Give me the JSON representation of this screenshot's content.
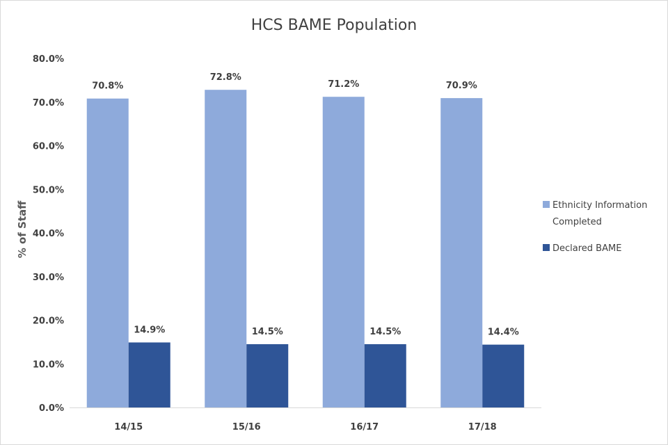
{
  "chart_data": {
    "type": "bar",
    "title": "HCS BAME Population",
    "xlabel": "",
    "ylabel": "% of Staff",
    "categories": [
      "14/15",
      "15/16",
      "16/17",
      "17/18"
    ],
    "series": [
      {
        "name": "Ethnicity Information Completed",
        "color": "#8eaadb",
        "values": [
          70.8,
          72.8,
          71.2,
          70.9
        ],
        "labels": [
          "70.8%",
          "72.8%",
          "71.2%",
          "70.9%"
        ]
      },
      {
        "name": "Declared BAME",
        "color": "#2f5597",
        "values": [
          14.9,
          14.5,
          14.5,
          14.4
        ],
        "labels": [
          "14.9%",
          "14.5%",
          "14.5%",
          "14.4%"
        ]
      }
    ],
    "ylim": [
      0,
      80
    ],
    "yticks": [
      0,
      10,
      20,
      30,
      40,
      50,
      60,
      70,
      80
    ],
    "ytick_labels": [
      "0.0%",
      "10.0%",
      "20.0%",
      "30.0%",
      "40.0%",
      "50.0%",
      "60.0%",
      "70.0%",
      "80.0%"
    ],
    "grid": false,
    "legend_position": "right"
  }
}
